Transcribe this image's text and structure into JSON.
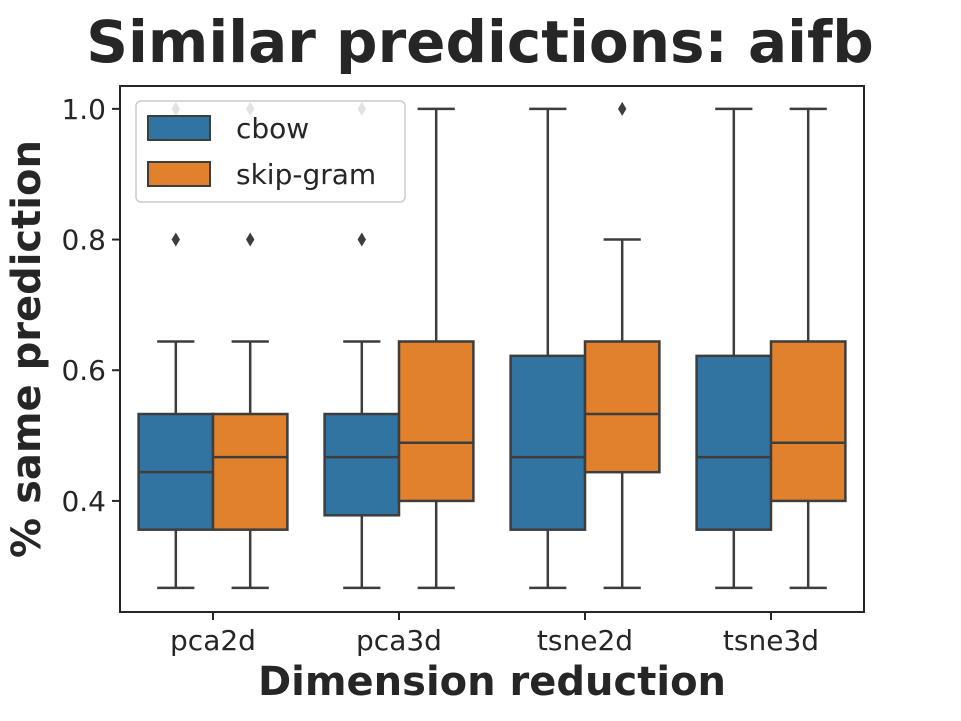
{
  "chart_data": {
    "type": "box",
    "title": "Similar predictions: aifb",
    "xlabel": "Dimension reduction",
    "ylabel": "% same prediction",
    "categories": [
      "pca2d",
      "pca3d",
      "tsne2d",
      "tsne3d"
    ],
    "ylim": [
      0.23,
      1.035
    ],
    "yticks": [
      0.4,
      0.6,
      0.8,
      1.0
    ],
    "ytick_labels": [
      "0.4",
      "0.6",
      "0.8",
      "1.0"
    ],
    "legend_position": "upper-left",
    "grid": false,
    "series": [
      {
        "name": "cbow",
        "color": "#3274a1",
        "boxes": [
          {
            "whisker_low": 0.267,
            "q1": 0.356,
            "median": 0.444,
            "q3": 0.533,
            "whisker_high": 0.644,
            "outliers": [
              0.8,
              1.0
            ]
          },
          {
            "whisker_low": 0.267,
            "q1": 0.378,
            "median": 0.467,
            "q3": 0.533,
            "whisker_high": 0.644,
            "outliers": [
              0.8,
              1.0
            ]
          },
          {
            "whisker_low": 0.267,
            "q1": 0.356,
            "median": 0.467,
            "q3": 0.622,
            "whisker_high": 1.0,
            "outliers": []
          },
          {
            "whisker_low": 0.267,
            "q1": 0.356,
            "median": 0.467,
            "q3": 0.622,
            "whisker_high": 1.0,
            "outliers": []
          }
        ]
      },
      {
        "name": "skip-gram",
        "color": "#e1812c",
        "boxes": [
          {
            "whisker_low": 0.267,
            "q1": 0.356,
            "median": 0.467,
            "q3": 0.533,
            "whisker_high": 0.644,
            "outliers": [
              0.8,
              1.0
            ]
          },
          {
            "whisker_low": 0.267,
            "q1": 0.4,
            "median": 0.489,
            "q3": 0.644,
            "whisker_high": 1.0,
            "outliers": []
          },
          {
            "whisker_low": 0.267,
            "q1": 0.444,
            "median": 0.533,
            "q3": 0.644,
            "whisker_high": 0.8,
            "outliers": [
              1.0
            ]
          },
          {
            "whisker_low": 0.267,
            "q1": 0.4,
            "median": 0.489,
            "q3": 0.644,
            "whisker_high": 1.0,
            "outliers": []
          }
        ]
      }
    ]
  }
}
